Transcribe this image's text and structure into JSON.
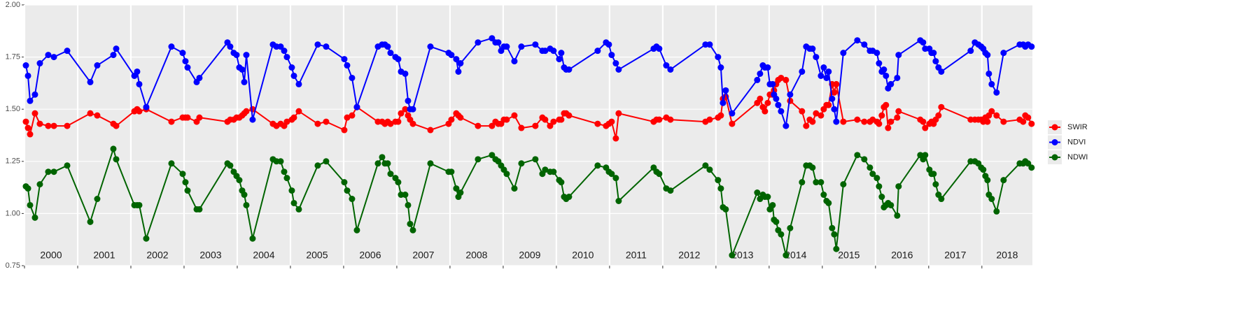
{
  "chart_data": {
    "type": "line",
    "x": [
      2000.026,
      2000.066,
      2000.105,
      2000.197,
      2000.289,
      2000.447,
      2000.553,
      2000.803,
      2001.237,
      2001.368,
      2001.671,
      2001.724,
      2002.066,
      2002.118,
      2002.158,
      2002.289,
      2002.763,
      2002.974,
      2003.026,
      2003.066,
      2003.237,
      2003.289,
      2003.816,
      2003.868,
      2003.934,
      2003.987,
      2004.039,
      2004.092,
      2004.132,
      2004.171,
      2004.289,
      2004.671,
      2004.737,
      2004.816,
      2004.882,
      2004.934,
      2005.026,
      2005.066,
      2005.158,
      2005.513,
      2005.671,
      2006.013,
      2006.066,
      2006.158,
      2006.25,
      2006.645,
      2006.724,
      2006.776,
      2006.829,
      2006.882,
      2006.974,
      2007.026,
      2007.079,
      2007.158,
      2007.211,
      2007.25,
      2007.303,
      2007.632,
      2007.974,
      2008.026,
      2008.118,
      2008.158,
      2008.197,
      2008.526,
      2008.789,
      2008.855,
      2008.908,
      2008.961,
      2009.013,
      2009.066,
      2009.211,
      2009.342,
      2009.605,
      2009.737,
      2009.789,
      2009.882,
      2009.947,
      2010.053,
      2010.092,
      2010.145,
      2010.184,
      2010.237,
      2010.776,
      2010.934,
      2010.987,
      2011.039,
      2011.118,
      2011.171,
      2011.829,
      2011.882,
      2011.934,
      2012.066,
      2012.145,
      2012.803,
      2012.882,
      2013.039,
      2013.092,
      2013.132,
      2013.184,
      2013.303,
      2013.776,
      2013.829,
      2013.882,
      2013.921,
      2013.974,
      2014.013,
      2014.066,
      2014.092,
      2014.132,
      2014.171,
      2014.224,
      2014.316,
      2014.395,
      2014.618,
      2014.697,
      2014.763,
      2014.816,
      2014.882,
      2014.974,
      2015.026,
      2015.079,
      2015.118,
      2015.184,
      2015.224,
      2015.263,
      2015.395,
      2015.658,
      2015.789,
      2015.895,
      2015.947,
      2016.026,
      2016.066,
      2016.118,
      2016.158,
      2016.197,
      2016.237,
      2016.289,
      2016.408,
      2016.434,
      2016.842,
      2016.895,
      2016.934,
      2017.013,
      2017.053,
      2017.092,
      2017.132,
      2017.184,
      2017.237,
      2017.789,
      2017.868,
      2017.934,
      2017.987,
      2018.026,
      2018.066,
      2018.105,
      2018.132,
      2018.184,
      2018.276,
      2018.408,
      2018.711,
      2018.776,
      2018.816,
      2018.868,
      2018.934
    ],
    "series": [
      {
        "name": "SWIR",
        "color": "#ff0000",
        "values": [
          1.44,
          1.41,
          1.38,
          1.48,
          1.43,
          1.42,
          1.42,
          1.42,
          1.48,
          1.47,
          1.43,
          1.42,
          1.49,
          1.5,
          1.49,
          1.5,
          1.44,
          1.46,
          1.46,
          1.46,
          1.44,
          1.46,
          1.44,
          1.45,
          1.45,
          1.46,
          1.46,
          1.47,
          1.48,
          1.49,
          1.5,
          1.43,
          1.42,
          1.43,
          1.42,
          1.44,
          1.45,
          1.46,
          1.49,
          1.43,
          1.44,
          1.4,
          1.46,
          1.47,
          1.51,
          1.44,
          1.44,
          1.43,
          1.44,
          1.43,
          1.44,
          1.44,
          1.48,
          1.5,
          1.47,
          1.45,
          1.43,
          1.4,
          1.43,
          1.45,
          1.48,
          1.47,
          1.46,
          1.42,
          1.42,
          1.44,
          1.43,
          1.43,
          1.45,
          1.45,
          1.47,
          1.41,
          1.42,
          1.46,
          1.45,
          1.42,
          1.44,
          1.45,
          1.45,
          1.48,
          1.48,
          1.47,
          1.43,
          1.42,
          1.43,
          1.44,
          1.36,
          1.48,
          1.44,
          1.45,
          1.45,
          1.46,
          1.45,
          1.44,
          1.45,
          1.46,
          1.47,
          1.55,
          1.56,
          1.43,
          1.53,
          1.55,
          1.51,
          1.49,
          1.53,
          1.57,
          1.57,
          1.59,
          1.62,
          1.64,
          1.65,
          1.64,
          1.54,
          1.49,
          1.42,
          1.45,
          1.44,
          1.48,
          1.47,
          1.5,
          1.52,
          1.52,
          1.62,
          1.58,
          1.62,
          1.44,
          1.45,
          1.44,
          1.44,
          1.45,
          1.44,
          1.43,
          1.47,
          1.51,
          1.52,
          1.41,
          1.44,
          1.46,
          1.49,
          1.45,
          1.44,
          1.41,
          1.43,
          1.44,
          1.43,
          1.45,
          1.47,
          1.51,
          1.45,
          1.45,
          1.45,
          1.45,
          1.44,
          1.46,
          1.44,
          1.47,
          1.49,
          1.47,
          1.44,
          1.45,
          1.44,
          1.47,
          1.46,
          1.43
        ]
      },
      {
        "name": "NDVI",
        "color": "#0000ff",
        "values": [
          1.71,
          1.66,
          1.54,
          1.57,
          1.72,
          1.76,
          1.75,
          1.78,
          1.63,
          1.71,
          1.76,
          1.79,
          1.66,
          1.68,
          1.62,
          1.51,
          1.8,
          1.77,
          1.73,
          1.7,
          1.63,
          1.65,
          1.82,
          1.8,
          1.77,
          1.76,
          1.7,
          1.69,
          1.63,
          1.76,
          1.45,
          1.81,
          1.8,
          1.8,
          1.78,
          1.75,
          1.7,
          1.66,
          1.62,
          1.81,
          1.8,
          1.74,
          1.71,
          1.65,
          1.51,
          1.8,
          1.81,
          1.81,
          1.8,
          1.77,
          1.75,
          1.74,
          1.68,
          1.67,
          1.54,
          1.5,
          1.5,
          1.8,
          1.77,
          1.76,
          1.74,
          1.68,
          1.72,
          1.82,
          1.84,
          1.82,
          1.82,
          1.78,
          1.8,
          1.8,
          1.73,
          1.8,
          1.81,
          1.78,
          1.78,
          1.79,
          1.78,
          1.74,
          1.77,
          1.7,
          1.69,
          1.69,
          1.78,
          1.82,
          1.81,
          1.76,
          1.72,
          1.69,
          1.79,
          1.8,
          1.79,
          1.71,
          1.69,
          1.81,
          1.81,
          1.75,
          1.7,
          1.53,
          1.59,
          1.48,
          1.64,
          1.67,
          1.71,
          1.7,
          1.7,
          1.62,
          1.62,
          1.57,
          1.55,
          1.52,
          1.49,
          1.42,
          1.57,
          1.68,
          1.8,
          1.79,
          1.79,
          1.75,
          1.66,
          1.7,
          1.65,
          1.68,
          1.55,
          1.5,
          1.44,
          1.77,
          1.83,
          1.81,
          1.78,
          1.78,
          1.77,
          1.72,
          1.68,
          1.69,
          1.66,
          1.6,
          1.62,
          1.65,
          1.76,
          1.83,
          1.82,
          1.79,
          1.79,
          1.77,
          1.77,
          1.73,
          1.7,
          1.68,
          1.78,
          1.82,
          1.81,
          1.8,
          1.79,
          1.77,
          1.76,
          1.67,
          1.62,
          1.58,
          1.77,
          1.81,
          1.81,
          1.8,
          1.81,
          1.8
        ]
      },
      {
        "name": "NDWI",
        "color": "#006400",
        "values": [
          1.13,
          1.12,
          1.04,
          0.98,
          1.14,
          1.2,
          1.2,
          1.23,
          0.96,
          1.07,
          1.31,
          1.26,
          1.04,
          1.04,
          1.04,
          0.88,
          1.24,
          1.19,
          1.15,
          1.11,
          1.02,
          1.02,
          1.24,
          1.23,
          1.2,
          1.18,
          1.16,
          1.11,
          1.09,
          1.04,
          0.88,
          1.26,
          1.25,
          1.25,
          1.2,
          1.17,
          1.11,
          1.05,
          1.02,
          1.23,
          1.25,
          1.15,
          1.11,
          1.07,
          0.92,
          1.24,
          1.27,
          1.24,
          1.24,
          1.19,
          1.17,
          1.15,
          1.09,
          1.09,
          1.04,
          0.95,
          0.92,
          1.24,
          1.2,
          1.2,
          1.12,
          1.08,
          1.1,
          1.26,
          1.28,
          1.26,
          1.25,
          1.23,
          1.21,
          1.19,
          1.12,
          1.24,
          1.26,
          1.19,
          1.21,
          1.2,
          1.2,
          1.16,
          1.15,
          1.08,
          1.07,
          1.08,
          1.23,
          1.22,
          1.2,
          1.19,
          1.17,
          1.06,
          1.22,
          1.2,
          1.19,
          1.12,
          1.11,
          1.23,
          1.21,
          1.16,
          1.12,
          1.03,
          1.02,
          0.8,
          1.1,
          1.07,
          1.09,
          1.08,
          1.08,
          1.02,
          1.04,
          0.97,
          0.96,
          0.92,
          0.9,
          0.8,
          0.93,
          1.15,
          1.23,
          1.23,
          1.22,
          1.15,
          1.15,
          1.09,
          1.06,
          1.05,
          0.93,
          0.9,
          0.83,
          1.14,
          1.28,
          1.26,
          1.22,
          1.19,
          1.17,
          1.13,
          1.08,
          1.03,
          1.04,
          1.05,
          1.04,
          0.99,
          1.13,
          1.28,
          1.26,
          1.28,
          1.21,
          1.19,
          1.19,
          1.14,
          1.09,
          1.07,
          1.25,
          1.25,
          1.24,
          1.22,
          1.21,
          1.18,
          1.16,
          1.09,
          1.07,
          1.01,
          1.16,
          1.24,
          1.24,
          1.25,
          1.24,
          1.22
        ]
      }
    ],
    "xlim": [
      2000,
      2018.95
    ],
    "xticks": [
      {
        "value": 2000,
        "label": "2000"
      },
      {
        "value": 2001,
        "label": "2001"
      },
      {
        "value": 2002,
        "label": "2002"
      },
      {
        "value": 2003,
        "label": "2003"
      },
      {
        "value": 2004,
        "label": "2004"
      },
      {
        "value": 2005,
        "label": "2005"
      },
      {
        "value": 2006,
        "label": "2006"
      },
      {
        "value": 2007,
        "label": "2007"
      },
      {
        "value": 2008,
        "label": "2008"
      },
      {
        "value": 2009,
        "label": "2009"
      },
      {
        "value": 2010,
        "label": "2010"
      },
      {
        "value": 2011,
        "label": "2011"
      },
      {
        "value": 2012,
        "label": "2012"
      },
      {
        "value": 2013,
        "label": "2013"
      },
      {
        "value": 2014,
        "label": "2014"
      },
      {
        "value": 2015,
        "label": "2015"
      },
      {
        "value": 2016,
        "label": "2016"
      },
      {
        "value": 2017,
        "label": "2017"
      },
      {
        "value": 2018,
        "label": "2018"
      }
    ],
    "ylim": [
      0.75,
      2.0
    ],
    "yticks": [
      {
        "value": 0.75,
        "label": "0.75"
      },
      {
        "value": 1.0,
        "label": "1.00"
      },
      {
        "value": 1.25,
        "label": "1.25"
      },
      {
        "value": 1.5,
        "label": "1.50"
      },
      {
        "value": 1.75,
        "label": "1.75"
      },
      {
        "value": 2.0,
        "label": "2.00"
      }
    ],
    "grid": true,
    "legend": "right"
  }
}
